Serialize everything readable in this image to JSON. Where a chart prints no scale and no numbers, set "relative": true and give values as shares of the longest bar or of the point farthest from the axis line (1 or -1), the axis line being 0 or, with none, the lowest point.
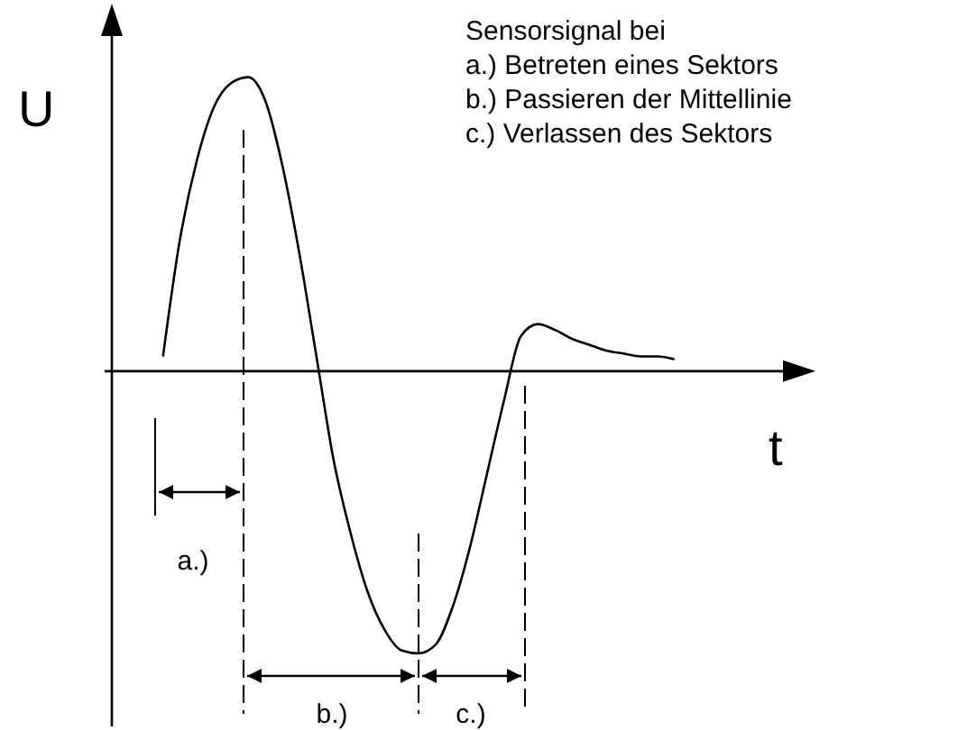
{
  "chart_data": {
    "type": "line",
    "relative": true,
    "xlabel": "t",
    "ylabel": "U",
    "color": "#000000",
    "annotations": [
      "Sensorsignal bei",
      "a.) Betreten eines Sektors",
      "b.) Passieren der Mittellinie",
      "c.) Verlassen des Sektors",
      "a.)",
      "b.)",
      "c.)"
    ],
    "categories": [
      null,
      null,
      null,
      null,
      null,
      null,
      null,
      null,
      null,
      null,
      null,
      null,
      null,
      null,
      null,
      null,
      null,
      null,
      null,
      null,
      null,
      null,
      null,
      null,
      null,
      null,
      null,
      null,
      null,
      null,
      null,
      null,
      null,
      null,
      null,
      null,
      null,
      null,
      null,
      null,
      null
    ],
    "values": [
      null,
      null,
      null,
      0.05,
      0.45,
      0.72,
      0.9,
      0.98,
      1,
      0.92,
      0.7,
      0.4,
      0.05,
      -0.3,
      -0.55,
      -0.75,
      -0.88,
      -0.95,
      -0.96,
      -0.93,
      -0.8,
      -0.6,
      -0.35,
      -0.1,
      0.12,
      0.16,
      0.14,
      0.11,
      0.09,
      0.07,
      0.06,
      0.05,
      0.05,
      0.04,
      null,
      null,
      null,
      null,
      null,
      null,
      null
    ]
  }
}
